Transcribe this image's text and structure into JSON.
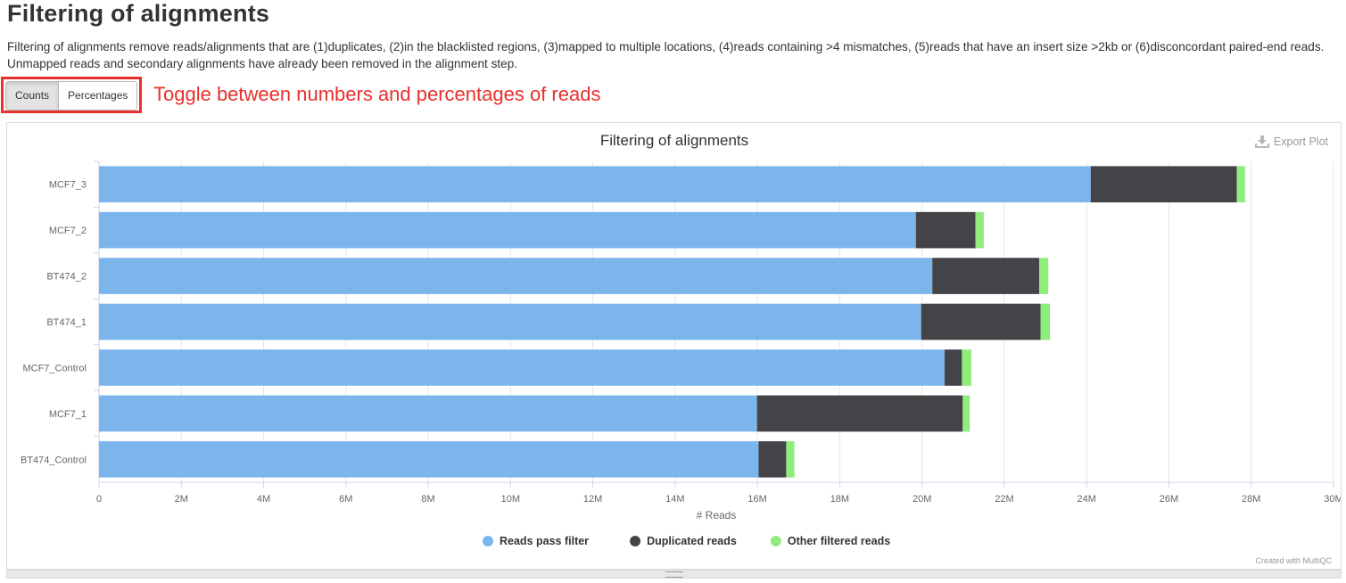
{
  "page": {
    "title": "Filtering of alignments",
    "description": "Filtering of alignments remove reads/alignments that are (1)duplicates, (2)in the blacklisted regions, (3)mapped to multiple locations, (4)reads containing >4 mismatches, (5)reads that have an insert size >2kb or (6)disconcordant paired-end reads. Unmapped reads and secondary alignments have already been removed in the alignment step."
  },
  "toggle": {
    "counts_label": "Counts",
    "percentages_label": "Percentages",
    "active": "Counts"
  },
  "annotation": "Toggle between numbers and percentages of reads",
  "plot": {
    "export_label": "Export Plot",
    "credit": "Created with MultiQC"
  },
  "colors": {
    "annotation": "#e8302c",
    "reads_pass": "#7cb5ec",
    "duplicated": "#434348",
    "other": "#90ed7d"
  },
  "chart_data": {
    "type": "bar",
    "orientation": "horizontal",
    "stacked": true,
    "title": "Filtering of alignments",
    "xlabel": "# Reads",
    "ylabel": "",
    "xlim": [
      0,
      30000000
    ],
    "tick_step": 2000000,
    "tick_labels": [
      "0",
      "2M",
      "4M",
      "6M",
      "8M",
      "10M",
      "12M",
      "14M",
      "16M",
      "18M",
      "20M",
      "22M",
      "24M",
      "26M",
      "28M",
      "30M"
    ],
    "grid": true,
    "legend_position": "bottom-center",
    "categories": [
      "MCF7_3",
      "MCF7_2",
      "BT474_2",
      "BT474_1",
      "MCF7_Control",
      "MCF7_1",
      "BT474_Control"
    ],
    "series": [
      {
        "name": "Reads pass filter",
        "color": "#7cb5ec",
        "values": [
          24100000,
          19850000,
          20250000,
          19980000,
          20550000,
          15990000,
          16030000
        ]
      },
      {
        "name": "Duplicated reads",
        "color": "#434348",
        "values": [
          3550000,
          1450000,
          2600000,
          2900000,
          420000,
          5000000,
          670000
        ]
      },
      {
        "name": "Other filtered reads",
        "color": "#90ed7d",
        "values": [
          200000,
          200000,
          220000,
          230000,
          230000,
          170000,
          200000
        ]
      }
    ]
  }
}
